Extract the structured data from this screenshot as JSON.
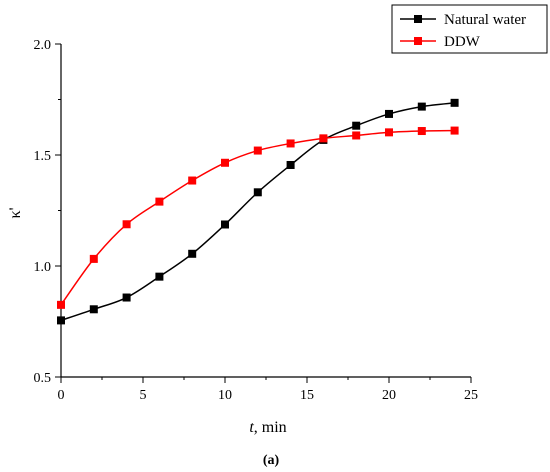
{
  "chart_data": {
    "type": "line",
    "title": "",
    "xlabel_var": "t",
    "xlabel_rest": ", min",
    "ylabel": "κ'",
    "caption": "(a)",
    "xlim": [
      0,
      25
    ],
    "ylim": [
      0.5,
      2.0
    ],
    "xticks": [
      0,
      5,
      10,
      15,
      20,
      25
    ],
    "yticks": [
      0.5,
      1.0,
      1.5,
      2.0
    ],
    "xtick_labels": [
      "0",
      "5",
      "10",
      "15",
      "20",
      "25"
    ],
    "ytick_labels": [
      "0.5",
      "1.0",
      "1.5",
      "2.0"
    ],
    "grid": false,
    "legend_position": "top-right",
    "x": [
      0,
      2,
      4,
      6,
      8,
      10,
      12,
      14,
      16,
      18,
      20,
      22,
      24
    ],
    "series": [
      {
        "name": "Natural water",
        "color": "#000000",
        "marker": "square",
        "values": [
          0.755,
          0.805,
          0.858,
          0.952,
          1.055,
          1.187,
          1.332,
          1.455,
          1.568,
          1.632,
          1.685,
          1.718,
          1.735
        ]
      },
      {
        "name": "DDW",
        "color": "#ff0000",
        "marker": "square",
        "values": [
          0.825,
          1.032,
          1.188,
          1.29,
          1.385,
          1.465,
          1.52,
          1.552,
          1.575,
          1.588,
          1.602,
          1.608,
          1.61
        ]
      }
    ]
  }
}
